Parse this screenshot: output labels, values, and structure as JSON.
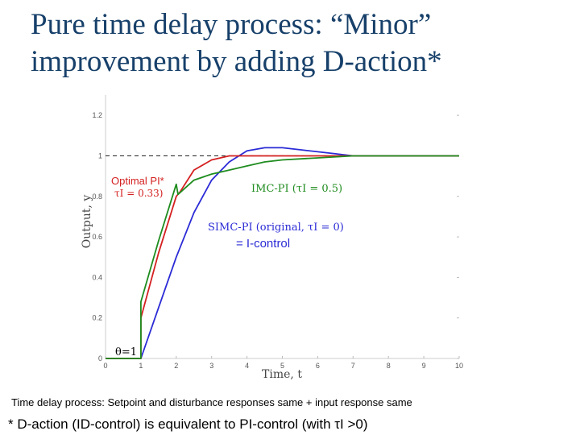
{
  "slide": {
    "title_line1": "Pure time delay process: “Minor”",
    "title_line2": "improvement by adding D-action*",
    "caption": "Time delay process: Setpoint and disturbance responses same + input response same",
    "footnote": "* D-action (ID-control) is equivalent to PI-control (with τI >0)"
  },
  "chart_data": {
    "type": "line",
    "xlabel": "Time, t",
    "ylabel": "Output, y",
    "xlim": [
      0,
      10
    ],
    "ylim": [
      0,
      1.3
    ],
    "xticks": [
      0,
      1,
      2,
      3,
      4,
      5,
      6,
      7,
      8,
      9,
      10
    ],
    "yticks": [
      0,
      0.2,
      0.4,
      0.6,
      0.8,
      1,
      1.2
    ],
    "ytick_labels": [
      "0",
      "0.2",
      "0.4",
      "0.6",
      "0.8",
      "1",
      "1.2"
    ],
    "grid": false,
    "reference_line": {
      "y": 1,
      "style": "dashed",
      "color": "#333333"
    },
    "series": [
      {
        "name": "SIMC-PI (original, τI = 0)",
        "color": "#2b2bd6",
        "x": [
          0,
          1,
          1.5,
          2,
          2.5,
          3,
          3.5,
          4,
          4.5,
          5,
          5.5,
          6,
          6.5,
          7,
          8,
          9,
          10
        ],
        "y": [
          0,
          0,
          0.25,
          0.5,
          0.72,
          0.88,
          0.97,
          1.025,
          1.04,
          1.04,
          1.03,
          1.02,
          1.01,
          1.0,
          1.0,
          1.0,
          1.0
        ]
      },
      {
        "name": "Optimal PI* (τI = 0.33)",
        "color": "#d42020",
        "x": [
          0,
          1,
          1,
          1.5,
          2,
          2.1,
          2.5,
          3,
          3.5,
          4,
          4.5,
          5,
          6,
          7,
          8,
          10
        ],
        "y": [
          0,
          0,
          0.2,
          0.52,
          0.8,
          0.82,
          0.93,
          0.98,
          1.0,
          1.0,
          1.0,
          1.0,
          1.0,
          1.0,
          1.0,
          1.0
        ]
      },
      {
        "name": "IMC-PI (τI = 0.5)",
        "color": "#1e8c1e",
        "x": [
          0,
          1,
          1,
          1.5,
          2,
          2.05,
          2.5,
          3,
          3.5,
          4,
          4.5,
          5,
          6,
          7,
          8,
          10
        ],
        "y": [
          0,
          0,
          0.28,
          0.58,
          0.86,
          0.81,
          0.88,
          0.91,
          0.93,
          0.95,
          0.97,
          0.98,
          0.99,
          1.0,
          1.0,
          1.0
        ]
      }
    ],
    "annotations": [
      {
        "text": "Optimal PI*",
        "color": "#d42020"
      },
      {
        "text": "τI = 0.33)",
        "color": "#d42020"
      },
      {
        "text": "IMC-PI (τI = 0.5)",
        "color": "#1e8c1e"
      },
      {
        "text": "SIMC-PI (original, τI = 0)",
        "color": "#2b2bd6"
      },
      {
        "text": "= I-control",
        "color": "#2b2bd6"
      },
      {
        "text": "θ=1",
        "color": "#000000"
      }
    ]
  }
}
